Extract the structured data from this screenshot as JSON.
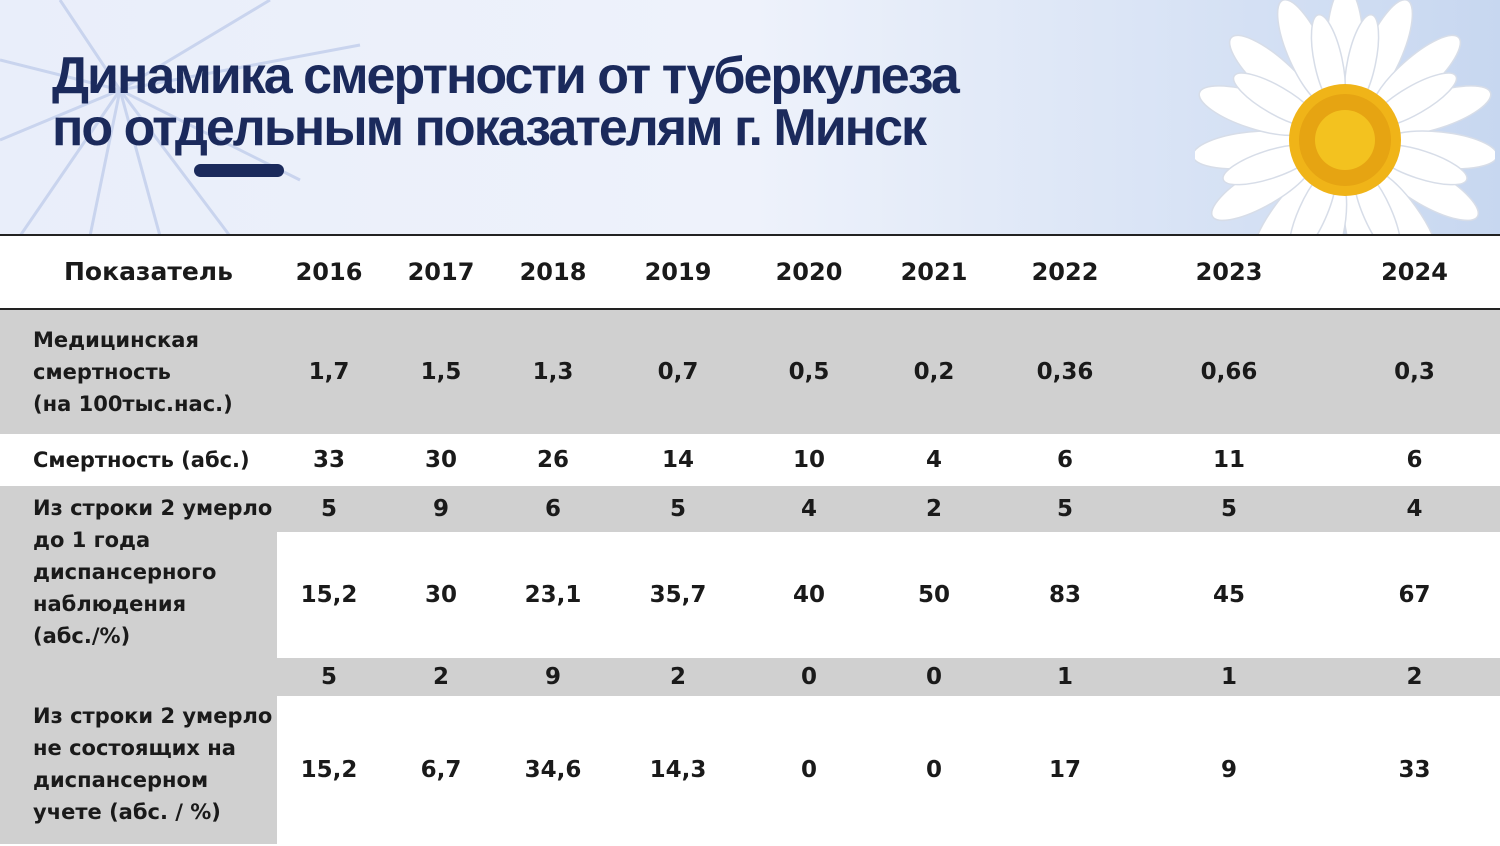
{
  "title": {
    "line1": "Динамика смертности от туберкулеза",
    "line2": "по отдельным показателям г. Минск"
  },
  "table": {
    "header_label": "Показатель",
    "years": [
      "2016",
      "2017",
      "2018",
      "2019",
      "2020",
      "2021",
      "2022",
      "2023",
      "2024"
    ],
    "rows": [
      {
        "label_lines": [
          "Медицинская",
          "смертность",
          "(на 100тыс.нас.)"
        ],
        "values": [
          "1,7",
          "1,5",
          "1,3",
          "0,7",
          "0,5",
          "0,2",
          "0,36",
          "0,66",
          "0,3"
        ]
      },
      {
        "label_lines": [
          "Смертность (абс.)"
        ],
        "values": [
          "33",
          "30",
          "26",
          "14",
          "10",
          "4",
          "6",
          "11",
          "6"
        ]
      },
      {
        "label_lines": [
          "Из строки 2 умерло",
          "до 1 года",
          "диспансерного",
          "наблюдения",
          "(абс./%)"
        ],
        "abs": [
          "5",
          "9",
          "6",
          "5",
          "4",
          "2",
          "5",
          "5",
          "4"
        ],
        "pct": [
          "15,2",
          "30",
          "23,1",
          "35,7",
          "40",
          "50",
          "83",
          "45",
          "67"
        ]
      },
      {
        "label_lines": [
          "Из строки 2 умерло",
          "не состоящих на",
          "диспансерном",
          "учете (абс. / %)"
        ],
        "abs": [
          "5",
          "2",
          "9",
          "2",
          "0",
          "0",
          "1",
          "1",
          "2"
        ],
        "pct": [
          "15,2",
          "6,7",
          "34,6",
          "14,3",
          "0",
          "0",
          "17",
          "9",
          "33"
        ]
      }
    ]
  },
  "colors": {
    "title": "#1b2a5c",
    "gray_row": "#d0d0d0",
    "daisy_center": "#f0b418"
  },
  "icons": {
    "decoration": "starburst-lines",
    "image": "daisy-flower"
  }
}
